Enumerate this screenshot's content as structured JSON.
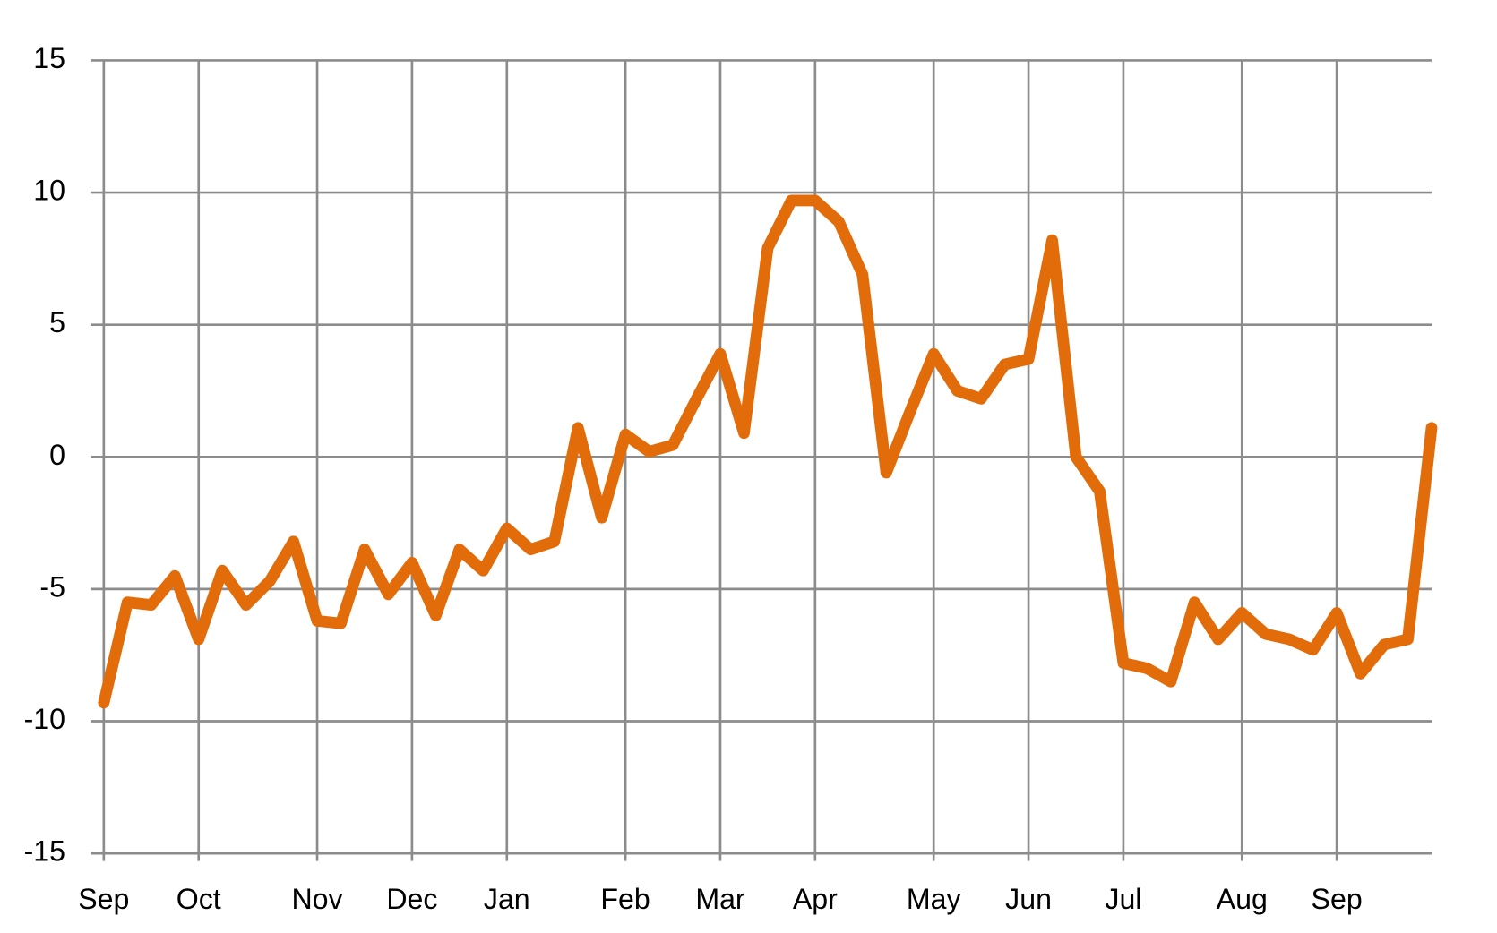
{
  "chart_data": {
    "type": "line",
    "categories": [
      "Sep",
      null,
      null,
      null,
      "Oct",
      null,
      null,
      null,
      null,
      "Nov",
      null,
      null,
      null,
      "Dec",
      null,
      null,
      null,
      "Jan",
      null,
      null,
      null,
      null,
      "Feb",
      null,
      null,
      null,
      "Mar",
      null,
      null,
      null,
      "Apr",
      null,
      null,
      null,
      null,
      "May",
      null,
      null,
      null,
      "Jun",
      null,
      null,
      null,
      "Jul",
      null,
      null,
      null,
      null,
      "Aug",
      null,
      null,
      null,
      "Sep",
      null,
      null,
      null,
      null
    ],
    "series": [
      {
        "color": "#e36c0a",
        "values": [
          -9.3,
          -5.5,
          -5.6,
          -4.5,
          -6.9,
          -4.3,
          -5.6,
          -4.7,
          -3.2,
          -6.2,
          -6.3,
          -3.5,
          -5.2,
          -4.0,
          -6.0,
          -3.5,
          -4.3,
          -2.7,
          -3.5,
          -3.2,
          1.1,
          -2.3,
          0.85,
          0.2,
          0.45,
          2.2,
          3.9,
          0.9,
          7.9,
          9.7,
          9.7,
          8.9,
          6.9,
          -0.6,
          1.7,
          3.9,
          2.5,
          2.2,
          3.5,
          3.7,
          8.2,
          0,
          -1.3,
          -7.8,
          -8.0,
          -8.5,
          -5.5,
          -6.9,
          -5.9,
          -6.7,
          -6.9,
          -7.3,
          -5.9,
          -8.2,
          -7.1,
          -6.9,
          1.1
        ]
      }
    ],
    "ylim": [
      -15,
      15
    ],
    "yticks": [
      -15,
      -10,
      -5,
      0,
      5,
      10,
      15
    ],
    "grid": true
  }
}
